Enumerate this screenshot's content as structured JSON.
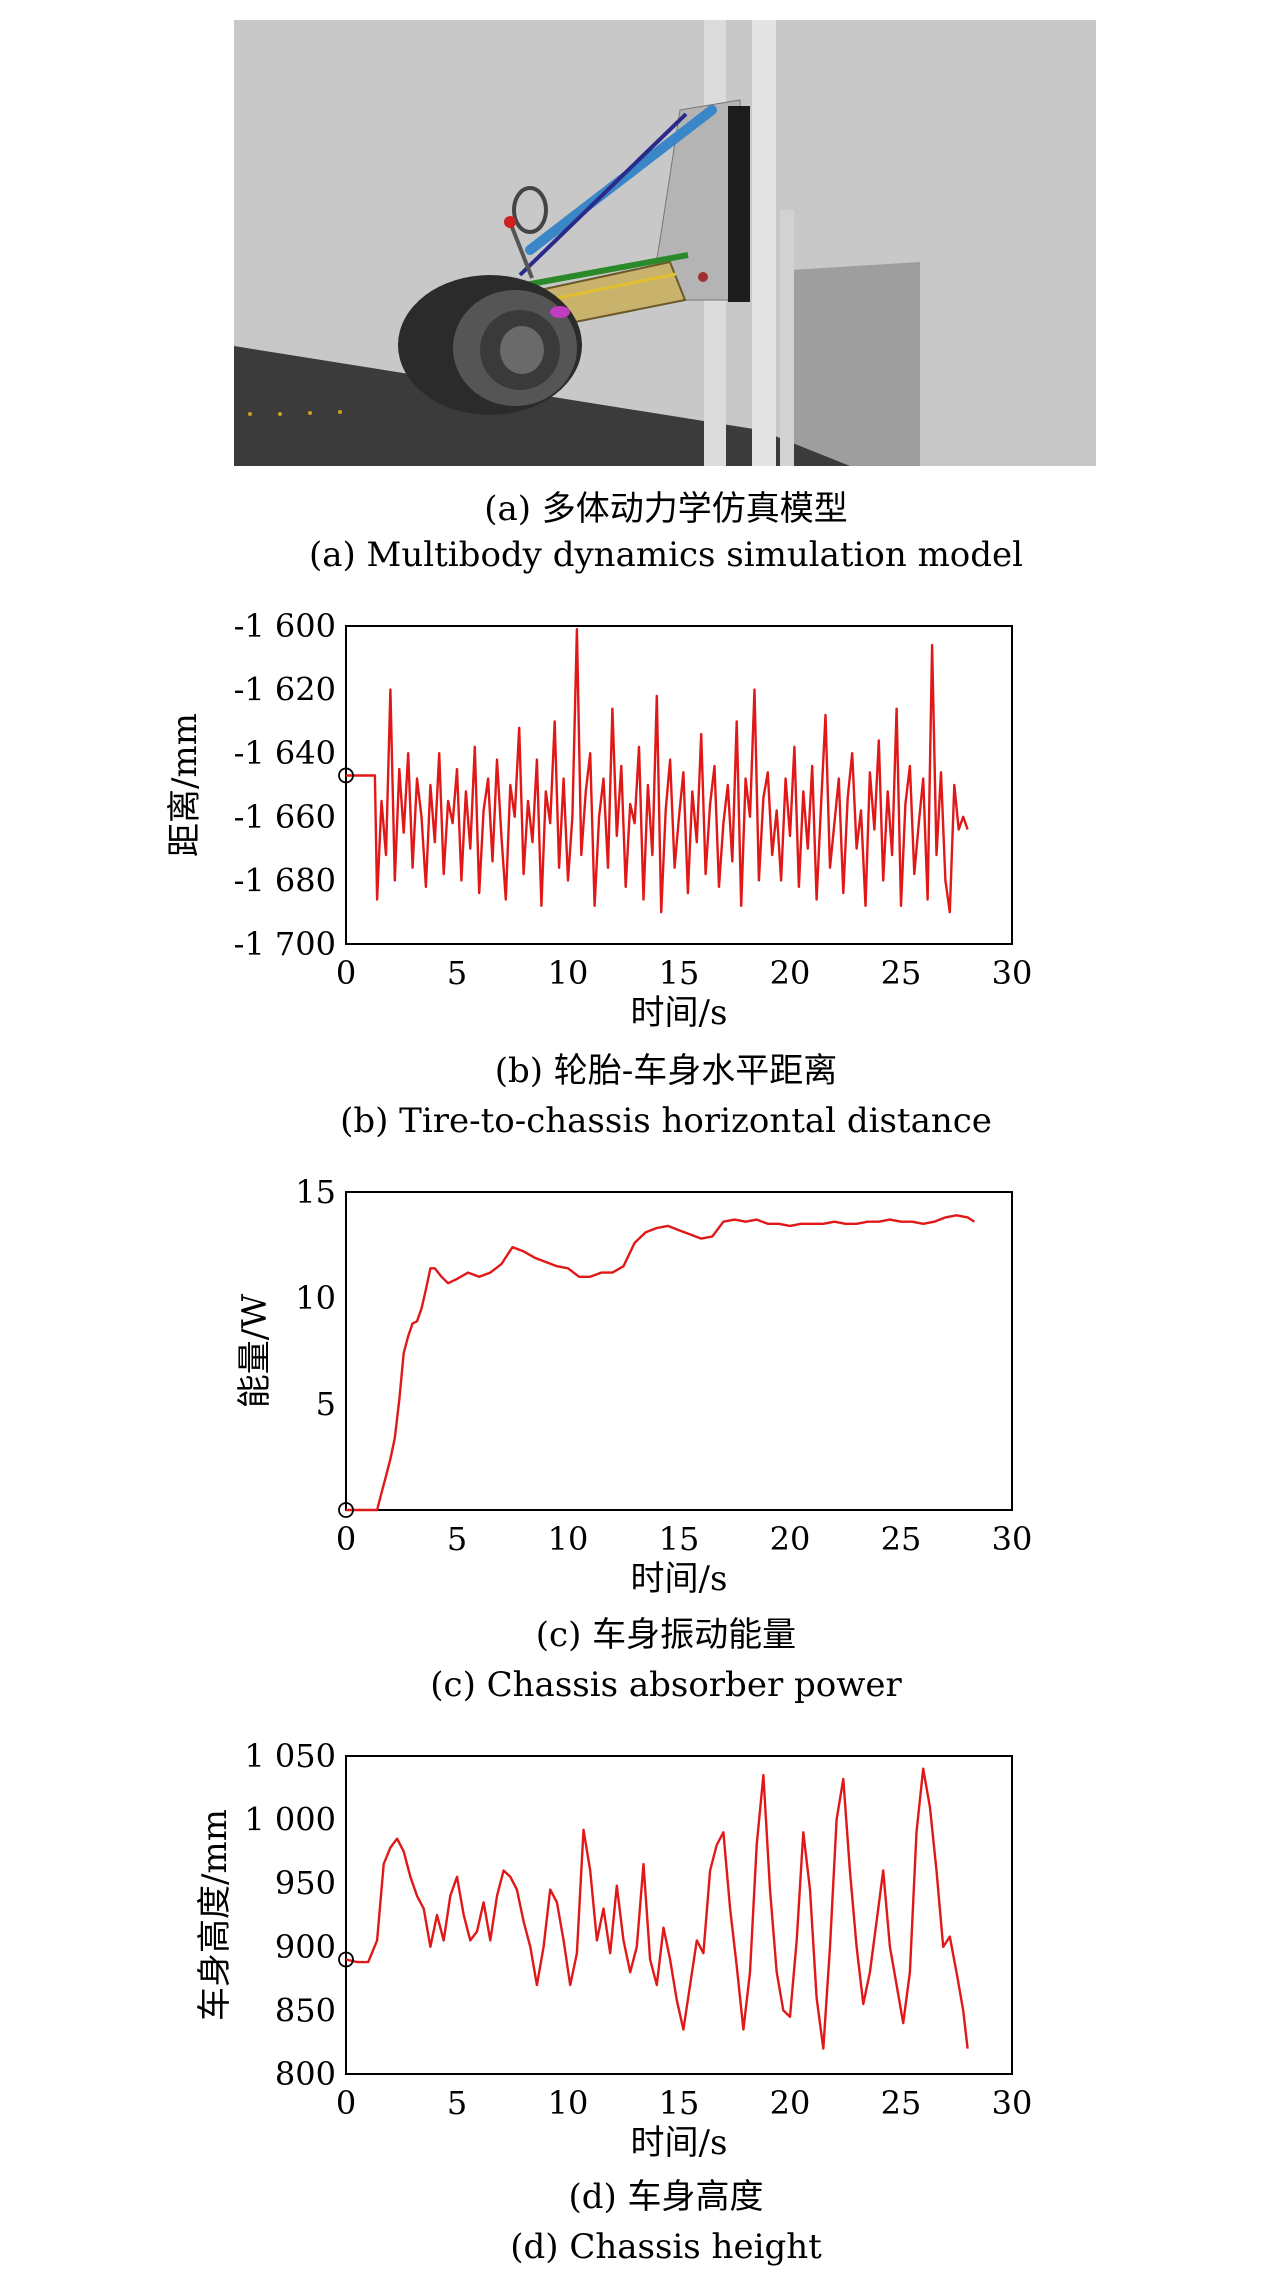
{
  "model_panel": {
    "caption_cn": "(a) 多体动力学仿真模型",
    "caption_en": "(a) Multibody dynamics simulation model"
  },
  "chart_data": [
    {
      "type": "line",
      "id": "b",
      "caption_cn": "(b) 轮胎-车身水平距离",
      "caption_en": "(b) Tire-to-chassis horizontal distance",
      "xlabel": "时间/s",
      "ylabel": "距离/mm",
      "xlim": [
        0,
        30
      ],
      "ylim": [
        -1700,
        -1600
      ],
      "xticks": [
        0,
        5,
        10,
        15,
        20,
        25,
        30
      ],
      "yticks": [
        -1600,
        -1620,
        -1640,
        -1660,
        -1680,
        -1700
      ],
      "xtick_labels": [
        "0",
        "5",
        "10",
        "15",
        "20",
        "25",
        "30"
      ],
      "ytick_labels": [
        "-1 600",
        "-1 620",
        "-1 640",
        "-1 660",
        "-1 680",
        "-1 700"
      ],
      "series": [
        {
          "color": "#e01818",
          "x": [
            0,
            1.3,
            1.4,
            1.6,
            1.8,
            2.0,
            2.2,
            2.4,
            2.6,
            2.8,
            3.0,
            3.2,
            3.4,
            3.6,
            3.8,
            4.0,
            4.2,
            4.4,
            4.6,
            4.8,
            5.0,
            5.2,
            5.4,
            5.6,
            5.8,
            6.0,
            6.2,
            6.4,
            6.6,
            6.8,
            7.0,
            7.2,
            7.4,
            7.6,
            7.8,
            8.0,
            8.2,
            8.4,
            8.6,
            8.8,
            9.0,
            9.2,
            9.4,
            9.6,
            9.8,
            10.0,
            10.2,
            10.4,
            10.6,
            10.8,
            11.0,
            11.2,
            11.4,
            11.6,
            11.8,
            12.0,
            12.2,
            12.4,
            12.6,
            12.8,
            13.0,
            13.2,
            13.4,
            13.6,
            13.8,
            14.0,
            14.2,
            14.4,
            14.6,
            14.8,
            15.0,
            15.2,
            15.4,
            15.6,
            15.8,
            16.0,
            16.2,
            16.4,
            16.6,
            16.8,
            17.0,
            17.2,
            17.4,
            17.6,
            17.8,
            18.0,
            18.2,
            18.4,
            18.6,
            18.8,
            19.0,
            19.2,
            19.4,
            19.6,
            19.8,
            20.0,
            20.2,
            20.4,
            20.6,
            20.8,
            21.0,
            21.2,
            21.4,
            21.6,
            21.8,
            22.0,
            22.2,
            22.4,
            22.6,
            22.8,
            23.0,
            23.2,
            23.4,
            23.6,
            23.8,
            24.0,
            24.2,
            24.4,
            24.6,
            24.8,
            25.0,
            25.2,
            25.4,
            25.6,
            25.8,
            26.0,
            26.2,
            26.4,
            26.6,
            26.8,
            27.0,
            27.2,
            27.4,
            27.6,
            27.8,
            28.0
          ],
          "y": [
            -1647,
            -1647,
            -1686,
            -1655,
            -1672,
            -1620,
            -1680,
            -1645,
            -1665,
            -1640,
            -1676,
            -1648,
            -1660,
            -1682,
            -1650,
            -1668,
            -1640,
            -1678,
            -1655,
            -1662,
            -1645,
            -1680,
            -1652,
            -1670,
            -1638,
            -1684,
            -1658,
            -1648,
            -1674,
            -1642,
            -1666,
            -1686,
            -1650,
            -1660,
            -1632,
            -1678,
            -1655,
            -1668,
            -1642,
            -1688,
            -1652,
            -1662,
            -1630,
            -1676,
            -1648,
            -1680,
            -1660,
            -1601,
            -1672,
            -1652,
            -1640,
            -1688,
            -1660,
            -1648,
            -1676,
            -1626,
            -1666,
            -1644,
            -1682,
            -1656,
            -1662,
            -1638,
            -1686,
            -1650,
            -1672,
            -1622,
            -1690,
            -1658,
            -1642,
            -1676,
            -1660,
            -1646,
            -1684,
            -1652,
            -1668,
            -1634,
            -1678,
            -1656,
            -1644,
            -1682,
            -1662,
            -1650,
            -1674,
            -1630,
            -1688,
            -1648,
            -1660,
            -1620,
            -1680,
            -1654,
            -1646,
            -1672,
            -1658,
            -1680,
            -1648,
            -1666,
            -1638,
            -1682,
            -1652,
            -1670,
            -1644,
            -1686,
            -1656,
            -1628,
            -1676,
            -1662,
            -1648,
            -1684,
            -1654,
            -1640,
            -1670,
            -1658,
            -1688,
            -1646,
            -1664,
            -1636,
            -1680,
            -1652,
            -1672,
            -1626,
            -1688,
            -1656,
            -1644,
            -1678,
            -1662,
            -1648,
            -1686,
            -1606,
            -1672,
            -1646,
            -1680,
            -1690,
            -1650,
            -1664,
            -1660,
            -1664
          ]
        }
      ]
    },
    {
      "type": "line",
      "id": "c",
      "caption_cn": "(c) 车身振动能量",
      "caption_en": "(c) Chassis absorber power",
      "xlabel": "时间/s",
      "ylabel": "能量/W",
      "xlim": [
        0,
        30
      ],
      "ylim": [
        0,
        15
      ],
      "xticks": [
        0,
        5,
        10,
        15,
        20,
        25,
        30
      ],
      "yticks": [
        5,
        10,
        15
      ],
      "xtick_labels": [
        "0",
        "5",
        "10",
        "15",
        "20",
        "25",
        "30"
      ],
      "ytick_labels": [
        "5",
        "10",
        "15"
      ],
      "series": [
        {
          "color": "#e01818",
          "x": [
            0,
            1.4,
            1.6,
            1.8,
            2.0,
            2.2,
            2.4,
            2.6,
            2.8,
            3.0,
            3.2,
            3.4,
            3.6,
            3.8,
            4.0,
            4.3,
            4.6,
            5.0,
            5.5,
            6.0,
            6.5,
            7.0,
            7.5,
            8.0,
            8.5,
            9.0,
            9.5,
            10.0,
            10.5,
            11.0,
            11.5,
            12.0,
            12.5,
            13.0,
            13.5,
            14.0,
            14.5,
            15.0,
            15.5,
            16.0,
            16.5,
            17.0,
            17.5,
            18.0,
            18.5,
            19.0,
            19.5,
            20.0,
            20.5,
            21.0,
            21.5,
            22.0,
            22.5,
            23.0,
            23.5,
            24.0,
            24.5,
            25.0,
            25.5,
            26.0,
            26.5,
            27.0,
            27.5,
            28.0,
            28.3
          ],
          "y": [
            0,
            0,
            0.8,
            1.6,
            2.4,
            3.4,
            5.2,
            7.4,
            8.2,
            8.8,
            8.9,
            9.5,
            10.4,
            11.4,
            11.4,
            11.0,
            10.7,
            10.9,
            11.2,
            11.0,
            11.2,
            11.6,
            12.4,
            12.2,
            11.9,
            11.7,
            11.5,
            11.4,
            11.0,
            11.0,
            11.2,
            11.2,
            11.5,
            12.6,
            13.1,
            13.3,
            13.4,
            13.2,
            13.0,
            12.8,
            12.9,
            13.6,
            13.7,
            13.6,
            13.7,
            13.5,
            13.5,
            13.4,
            13.5,
            13.5,
            13.5,
            13.6,
            13.5,
            13.5,
            13.6,
            13.6,
            13.7,
            13.6,
            13.6,
            13.5,
            13.6,
            13.8,
            13.9,
            13.8,
            13.6
          ]
        }
      ]
    },
    {
      "type": "line",
      "id": "d",
      "caption_cn": "(d) 车身高度",
      "caption_en": "(d) Chassis height",
      "xlabel": "时间/s",
      "ylabel": "车身高度/mm",
      "xlim": [
        0,
        30
      ],
      "ylim": [
        800,
        1050
      ],
      "xticks": [
        0,
        5,
        10,
        15,
        20,
        25,
        30
      ],
      "yticks": [
        800,
        850,
        900,
        950,
        1000,
        1050
      ],
      "xtick_labels": [
        "0",
        "5",
        "10",
        "15",
        "20",
        "25",
        "30"
      ],
      "ytick_labels": [
        "800",
        "850",
        "900",
        "950",
        "1 000",
        "1 050"
      ],
      "series": [
        {
          "color": "#e01818",
          "x": [
            0,
            0.5,
            1.0,
            1.4,
            1.7,
            2.0,
            2.3,
            2.6,
            2.9,
            3.2,
            3.5,
            3.8,
            4.1,
            4.4,
            4.7,
            5.0,
            5.3,
            5.6,
            5.9,
            6.2,
            6.5,
            6.8,
            7.1,
            7.4,
            7.7,
            8.0,
            8.3,
            8.6,
            8.9,
            9.2,
            9.5,
            9.8,
            10.1,
            10.4,
            10.7,
            11.0,
            11.3,
            11.6,
            11.9,
            12.2,
            12.5,
            12.8,
            13.1,
            13.4,
            13.7,
            14.0,
            14.3,
            14.6,
            14.9,
            15.2,
            15.5,
            15.8,
            16.1,
            16.4,
            16.7,
            17.0,
            17.3,
            17.6,
            17.9,
            18.2,
            18.5,
            18.8,
            19.1,
            19.4,
            19.7,
            20.0,
            20.3,
            20.6,
            20.9,
            21.2,
            21.5,
            21.8,
            22.1,
            22.4,
            22.7,
            23.0,
            23.3,
            23.6,
            23.9,
            24.2,
            24.5,
            24.8,
            25.1,
            25.4,
            25.7,
            26.0,
            26.3,
            26.6,
            26.9,
            27.2,
            27.5,
            27.8,
            28.0
          ],
          "y": [
            890,
            888,
            888,
            905,
            965,
            978,
            985,
            975,
            955,
            940,
            930,
            900,
            925,
            905,
            940,
            955,
            925,
            905,
            912,
            935,
            905,
            940,
            960,
            955,
            945,
            920,
            900,
            870,
            900,
            945,
            935,
            905,
            870,
            895,
            992,
            960,
            905,
            930,
            895,
            948,
            905,
            880,
            900,
            965,
            890,
            870,
            915,
            890,
            858,
            835,
            870,
            905,
            895,
            960,
            980,
            990,
            930,
            885,
            835,
            880,
            980,
            1035,
            945,
            880,
            850,
            845,
            905,
            990,
            945,
            860,
            820,
            900,
            1000,
            1032,
            960,
            900,
            855,
            880,
            920,
            960,
            900,
            870,
            840,
            880,
            990,
            1040,
            1010,
            960,
            900,
            908,
            880,
            850,
            820
          ]
        }
      ]
    }
  ]
}
